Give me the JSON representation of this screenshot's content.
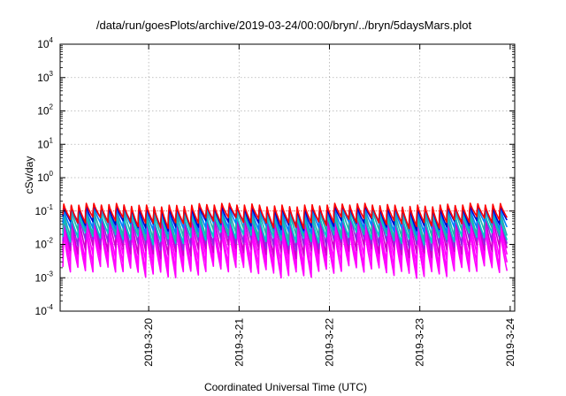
{
  "chart_data": {
    "type": "line",
    "title": "/data/run/goesPlots/archive/2019-03-24/00:00/bryn/../bryn/5daysMars.plot",
    "xlabel": "Coordinated Universal Time (UTC)",
    "ylabel": "cSv/day",
    "yscale": "log",
    "ylim": [
      0.0001,
      10000
    ],
    "y_ticks": [
      {
        "value": 0.0001,
        "base": "10",
        "exp": "-4"
      },
      {
        "value": 0.001,
        "base": "10",
        "exp": "-3"
      },
      {
        "value": 0.01,
        "base": "10",
        "exp": "-2"
      },
      {
        "value": 0.1,
        "base": "10",
        "exp": "-1"
      },
      {
        "value": 1,
        "base": "10",
        "exp": "0"
      },
      {
        "value": 10,
        "base": "10",
        "exp": "1"
      },
      {
        "value": 100,
        "base": "10",
        "exp": "2"
      },
      {
        "value": 1000,
        "base": "10",
        "exp": "3"
      },
      {
        "value": 10000,
        "base": "10",
        "exp": "4"
      }
    ],
    "xlim": [
      -0.98,
      4.05
    ],
    "x_ticks": [
      {
        "value": 0,
        "label": "2019-3-20"
      },
      {
        "value": 1,
        "label": "2019-3-21"
      },
      {
        "value": 2,
        "label": "2019-3-22"
      },
      {
        "value": 3,
        "label": "2019-3-23"
      },
      {
        "value": 4,
        "label": "2019-3-24"
      }
    ],
    "grid": true,
    "reference_line": {
      "value": 0.1,
      "color": "#ff0000"
    },
    "series_pattern": {
      "period_days": 0.0833,
      "peak_range": [
        0.07,
        0.15
      ],
      "trough_range": [
        0.0012,
        0.04
      ]
    },
    "series": [
      {
        "color": "#ff00ff",
        "peak": 0.025,
        "trough": 0.0015
      },
      {
        "color": "#ff00ff",
        "peak": 0.035,
        "trough": 0.0022
      },
      {
        "color": "#ff00ff",
        "peak": 0.05,
        "trough": 0.0035
      },
      {
        "color": "#cc00cc",
        "peak": 0.07,
        "trough": 0.006
      },
      {
        "color": "#8a2be2",
        "peak": 0.09,
        "trough": 0.01
      },
      {
        "color": "#00c8c8",
        "peak": 0.07,
        "trough": 0.015
      },
      {
        "color": "#20b2aa",
        "peak": 0.11,
        "trough": 0.02
      },
      {
        "color": "#0080ff",
        "peak": 0.12,
        "trough": 0.03
      },
      {
        "color": "#0000cc",
        "peak": 0.13,
        "trough": 0.04
      },
      {
        "color": "#ff0000",
        "peak": 0.15,
        "trough": 0.045
      }
    ]
  }
}
